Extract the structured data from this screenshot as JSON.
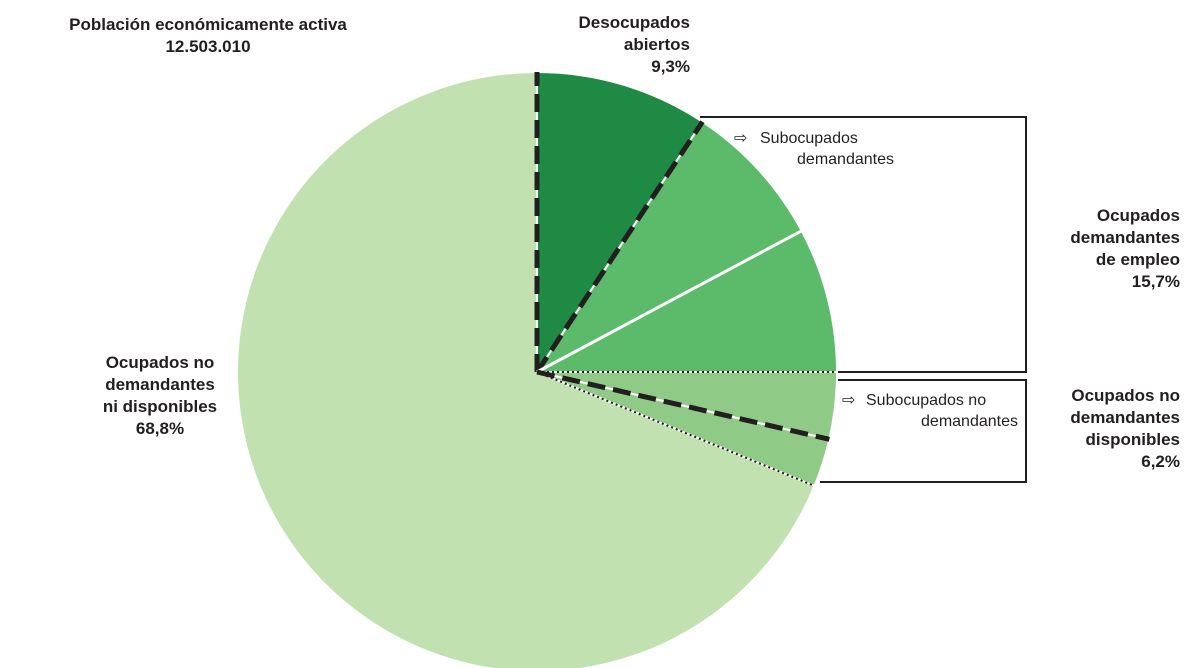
{
  "chart_data": {
    "type": "pie",
    "title": "Población económicamente activa",
    "subtitle": "12.503.010",
    "slices": [
      {
        "label": "Desocupados abiertos",
        "value": 9.3,
        "value_label": "9,3%",
        "color": "#1e8a44"
      },
      {
        "label": "Subocupados demandantes",
        "value": 7.9,
        "color": "#5cbb6b"
      },
      {
        "label": "Ocupados demandantes de empleo (resto)",
        "value": 7.8,
        "color": "#5cbb6b"
      },
      {
        "label": "Subocupados no demandantes",
        "value": 3.6,
        "color": "#8fcb86"
      },
      {
        "label": "Ocupados no demandantes disponibles (resto)",
        "value": 2.6,
        "color": "#8fcb86"
      },
      {
        "label": "Ocupados no demandantes ni disponibles",
        "value": 68.8,
        "value_label": "68,8%",
        "color": "#c2e1b0"
      }
    ],
    "groups": [
      {
        "label": "Ocupados demandantes de empleo",
        "value": 15.7,
        "value_label": "15,7%"
      },
      {
        "label": "Ocupados no demandantes disponibles",
        "value": 6.2,
        "value_label": "6,2%"
      }
    ]
  },
  "labels": {
    "title": "Población económicamente activa",
    "subtitle": "12.503.010",
    "desocupados_l1": "Desocupados",
    "desocupados_l2": "abiertos",
    "desocupados_pct": "9,3%",
    "subdem_arrow": "⇨",
    "subdem_l1": "Subocupados",
    "subdem_l2": "demandantes",
    "ocdem_l1": "Ocupados",
    "ocdem_l2": "demandantes",
    "ocdem_l3": "de empleo",
    "ocdem_pct": "15,7%",
    "subnodem_arrow": "⇨",
    "subnodem_l1": "Subocupados no",
    "subnodem_l2": "demandantes",
    "ocnodisp_l1": "Ocupados no",
    "ocnodisp_l2": "demandantes",
    "ocnodisp_l3": "disponibles",
    "ocnodisp_pct": "6,2%",
    "ocni_l1": "Ocupados no",
    "ocni_l2": "demandantes",
    "ocni_l3": "ni disponibles",
    "ocni_pct": "68,8%"
  }
}
